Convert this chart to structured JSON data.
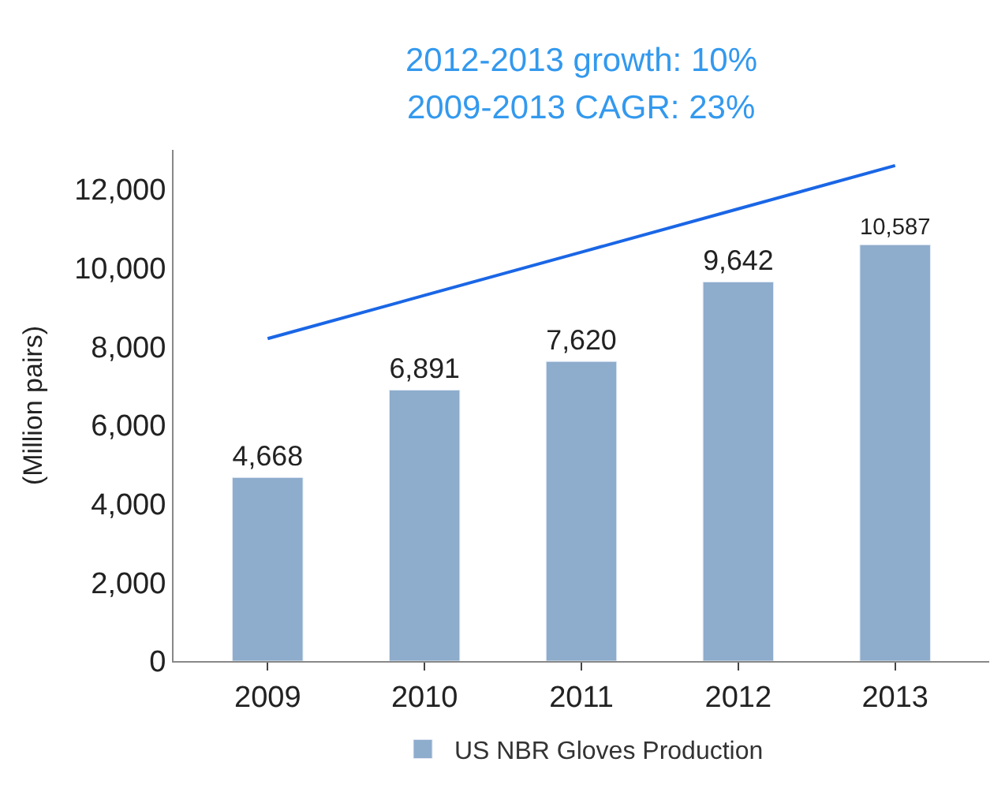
{
  "chart_data": {
    "type": "bar",
    "categories": [
      "2009",
      "2010",
      "2011",
      "2012",
      "2013"
    ],
    "series": [
      {
        "name": "US NBR Gloves Production",
        "color": "#8eaccc",
        "values": [
          4668,
          6891,
          7620,
          9642,
          10587
        ],
        "value_labels": [
          "4,668",
          "6,891",
          "7,620",
          "9,642",
          "10,587"
        ]
      },
      {
        "type": "line",
        "color": "#1a66e6",
        "values": [
          8200,
          9300,
          10400,
          11500,
          12600
        ]
      }
    ],
    "ylabel": "(Million pairs)",
    "ylim": [
      0,
      13000
    ],
    "yticks": [
      {
        "value": 0,
        "label": "0"
      },
      {
        "value": 2000,
        "label": "2,000"
      },
      {
        "value": 4000,
        "label": "4,000"
      },
      {
        "value": 6000,
        "label": "6,000"
      },
      {
        "value": 8000,
        "label": "8,000"
      },
      {
        "value": 10000,
        "label": "10,000"
      },
      {
        "value": 12000,
        "label": "12,000"
      }
    ],
    "annotations": [
      "2012-2013 growth: 10%",
      "2009-2013 CAGR: 23%"
    ],
    "legend": "bottom"
  }
}
